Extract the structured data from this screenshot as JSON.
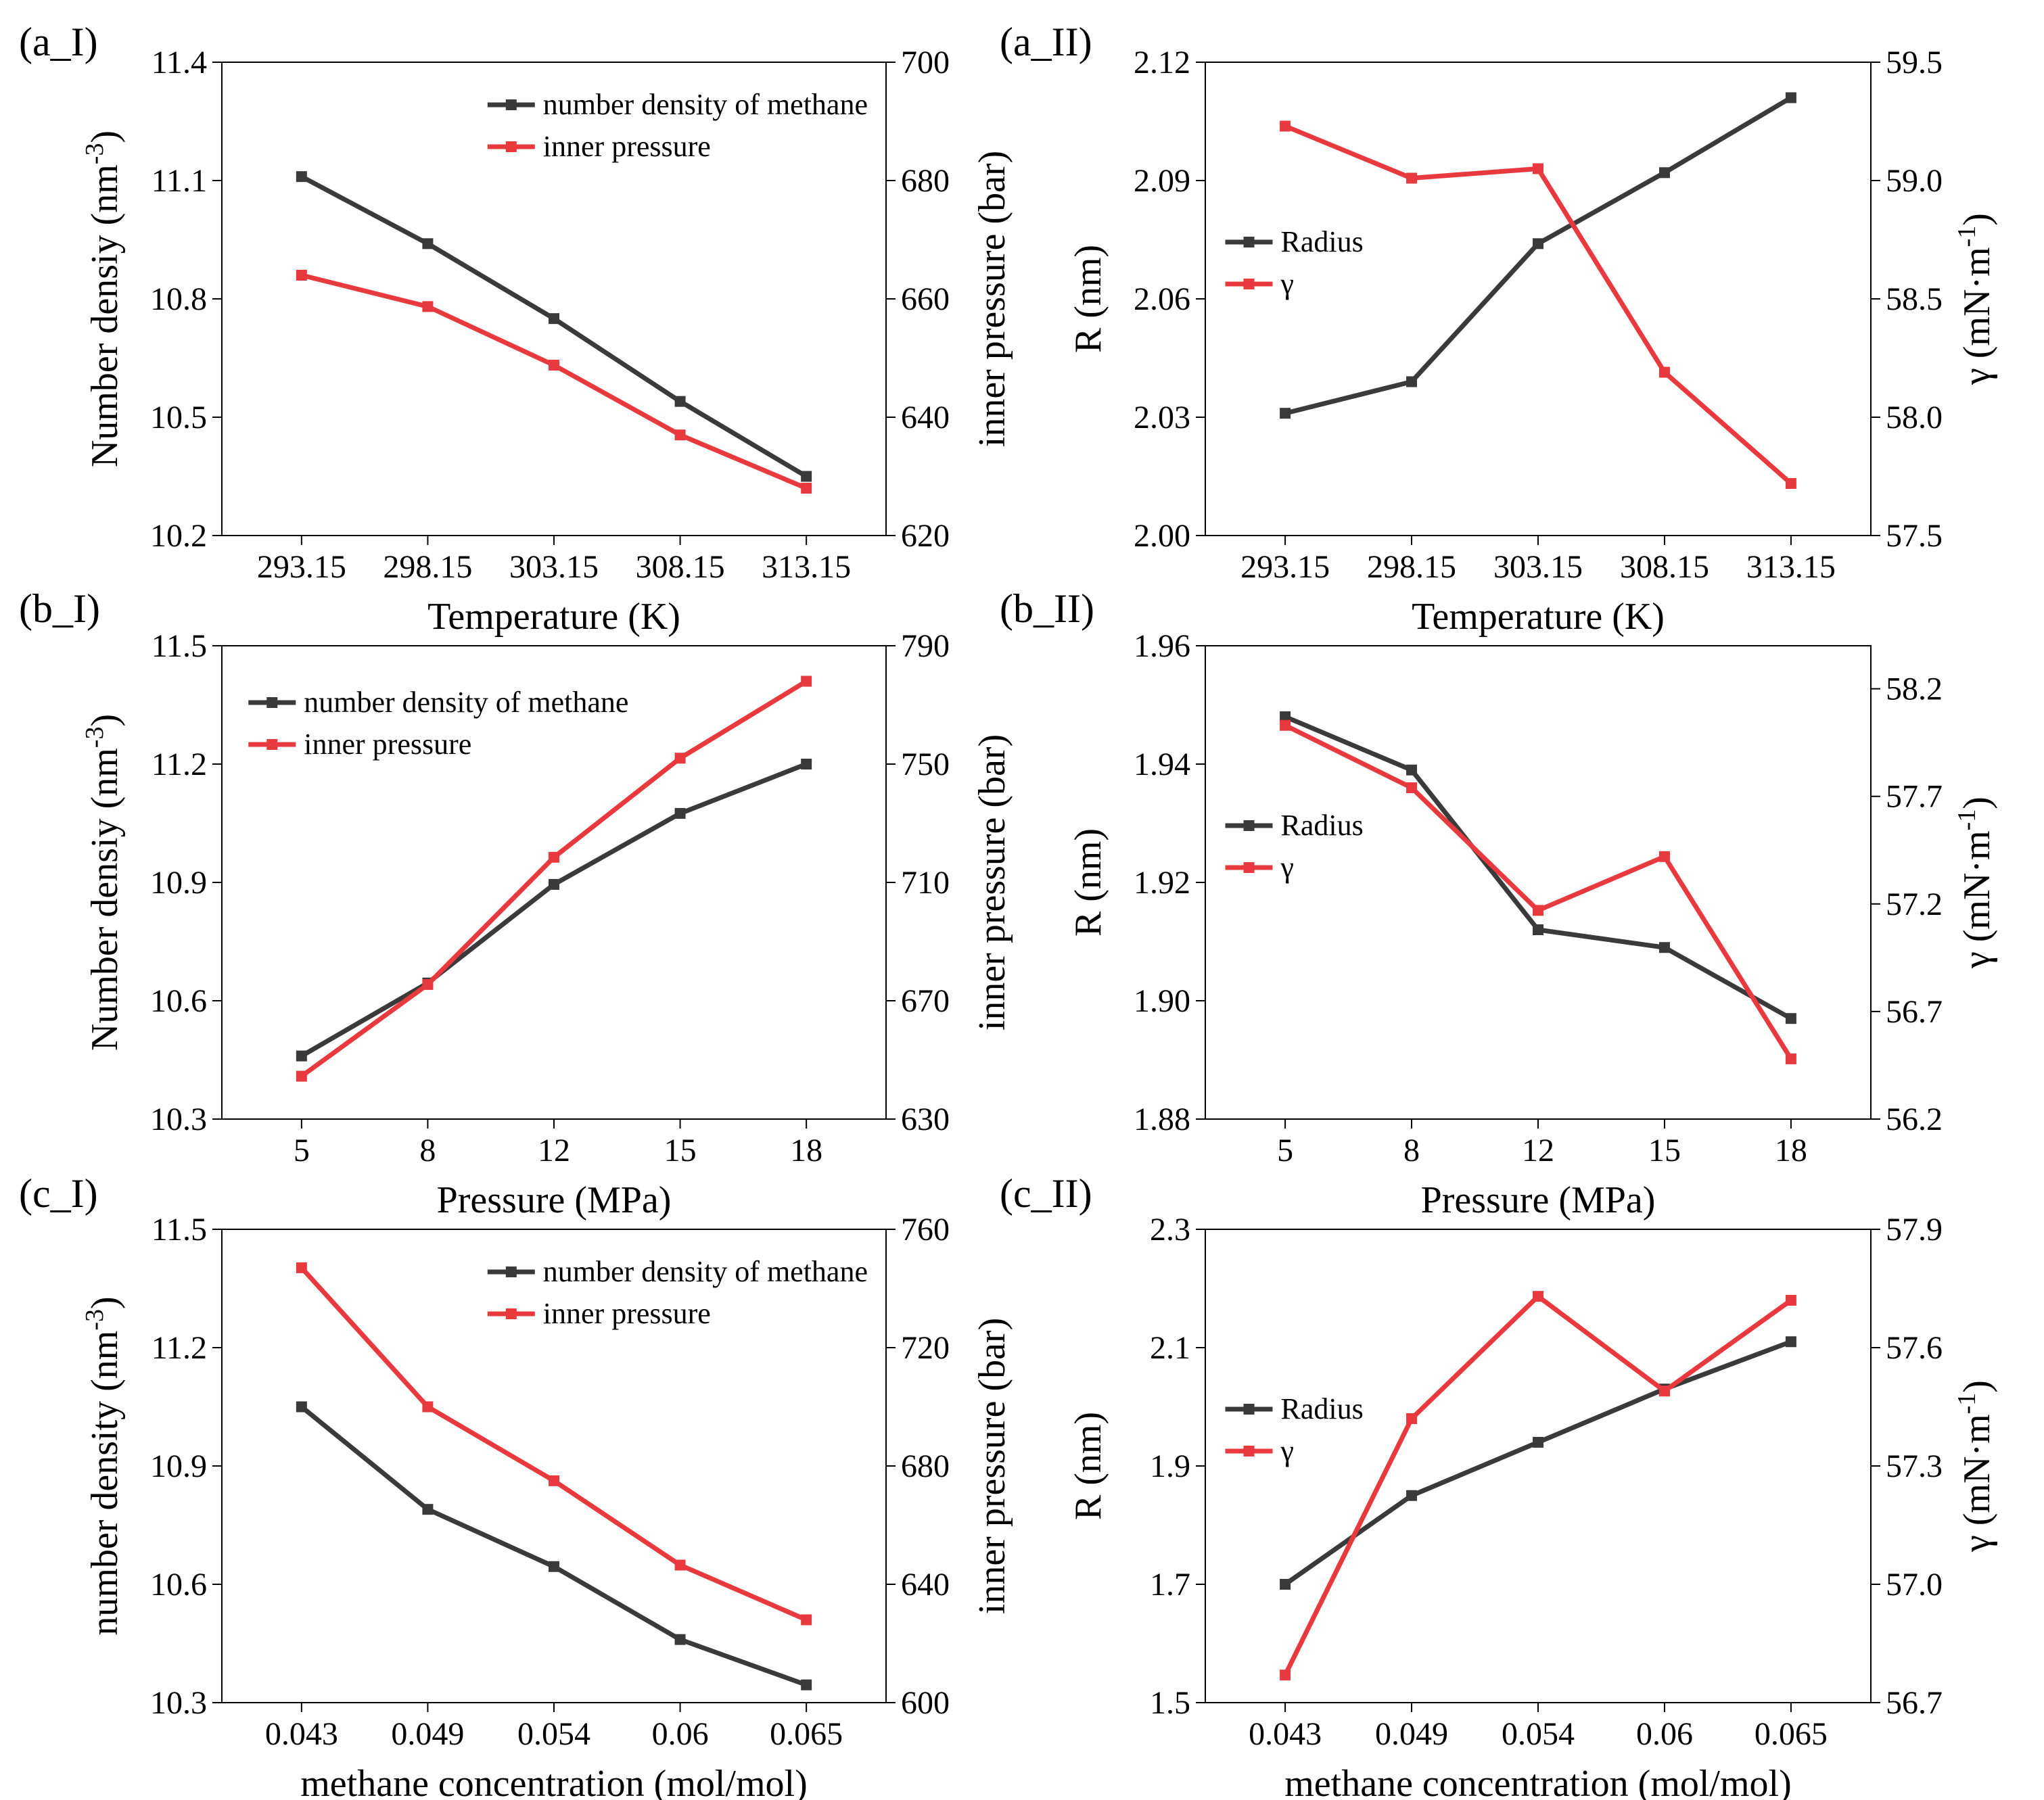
{
  "colors": {
    "series_dark": "#3a3a3a",
    "series_red": "#e8393e"
  },
  "chart_data": [
    {
      "type": "line",
      "panel_label": "(a_I)",
      "categories": [
        "293.15",
        "298.15",
        "303.15",
        "308.15",
        "313.15"
      ],
      "xlabel": "Temperature (K)",
      "left_axis": {
        "label": "Number densiy (nm",
        "sup": "-3",
        "close": ")",
        "ylim": [
          10.2,
          11.4
        ],
        "ticks": [
          "10.2",
          "10.5",
          "10.8",
          "11.1",
          "11.4"
        ]
      },
      "right_axis": {
        "label": "inner pressure (bar)",
        "ylim": [
          620,
          700
        ],
        "ticks": [
          "620",
          "640",
          "660",
          "680",
          "700"
        ]
      },
      "legend_position": "top-right",
      "series": [
        {
          "name": "number density of methane",
          "axis": "left",
          "color": "#3a3a3a",
          "values": [
            11.11,
            10.94,
            10.75,
            10.54,
            10.35
          ]
        },
        {
          "name": "inner pressure",
          "axis": "right",
          "color": "#e8393e",
          "values": [
            664.0,
            658.7,
            648.8,
            637.0,
            628.0
          ]
        }
      ]
    },
    {
      "type": "line",
      "panel_label": "(a_II)",
      "categories": [
        "293.15",
        "298.15",
        "303.15",
        "308.15",
        "313.15"
      ],
      "xlabel": "Temperature (K)",
      "left_axis": {
        "label": "R (nm)",
        "sup": "",
        "close": "",
        "ylim": [
          2.0,
          2.12
        ],
        "ticks": [
          "2.00",
          "2.03",
          "2.06",
          "2.09",
          "2.12"
        ]
      },
      "right_axis": {
        "label": "γ (mN·m",
        "sup": "-1",
        "close": ")",
        "ylim": [
          57.5,
          59.5
        ],
        "ticks": [
          "57.5",
          "58.0",
          "58.5",
          "59.0",
          "59.5"
        ]
      },
      "legend_position": "middle-left",
      "series": [
        {
          "name": "Radius",
          "axis": "left",
          "color": "#3a3a3a",
          "values": [
            2.031,
            2.039,
            2.074,
            2.092,
            2.111
          ]
        },
        {
          "name": "γ",
          "axis": "right",
          "color": "#e8393e",
          "values": [
            59.23,
            59.01,
            59.05,
            58.19,
            57.72
          ]
        }
      ]
    },
    {
      "type": "line",
      "panel_label": "(b_I)",
      "categories": [
        "5",
        "8",
        "12",
        "15",
        "18"
      ],
      "xlabel": "Pressure (MPa)",
      "left_axis": {
        "label": "Number densiy (nm",
        "sup": "-3",
        "close": ")",
        "ylim": [
          10.3,
          11.5
        ],
        "ticks": [
          "10.3",
          "10.6",
          "10.9",
          "11.2",
          "11.5"
        ]
      },
      "right_axis": {
        "label": "inner pressure (bar)",
        "ylim": [
          630,
          790
        ],
        "ticks": [
          "630",
          "670",
          "710",
          "750",
          "790"
        ]
      },
      "legend_position": "top-left",
      "series": [
        {
          "name": "number density of methane",
          "axis": "left",
          "color": "#3a3a3a",
          "values": [
            10.46,
            10.645,
            10.895,
            11.075,
            11.2
          ]
        },
        {
          "name": "inner pressure",
          "axis": "right",
          "color": "#e8393e",
          "values": [
            644.5,
            675.5,
            718.5,
            752.0,
            778.0
          ]
        }
      ]
    },
    {
      "type": "line",
      "panel_label": "(b_II)",
      "categories": [
        "5",
        "8",
        "12",
        "15",
        "18"
      ],
      "xlabel": "Pressure (MPa)",
      "left_axis": {
        "label": "R (nm)",
        "sup": "",
        "close": "",
        "ylim": [
          1.88,
          1.96
        ],
        "ticks": [
          "1.88",
          "1.90",
          "1.92",
          "1.94",
          "1.96"
        ]
      },
      "right_axis": {
        "label": "γ (mN·m",
        "sup": "-1",
        "close": ")",
        "ylim": [
          56.2,
          58.4
        ],
        "ticks": [
          "56.2",
          "56.7",
          "57.2",
          "57.7",
          "58.2"
        ]
      },
      "legend_position": "middle-left",
      "series": [
        {
          "name": "Radius",
          "axis": "left",
          "color": "#3a3a3a",
          "values": [
            1.948,
            1.939,
            1.912,
            1.909,
            1.897
          ]
        },
        {
          "name": "γ",
          "axis": "right",
          "color": "#e8393e",
          "values": [
            58.03,
            57.74,
            57.17,
            57.42,
            56.48
          ]
        }
      ]
    },
    {
      "type": "line",
      "panel_label": "(c_I)",
      "categories": [
        "0.043",
        "0.049",
        "0.054",
        "0.06",
        "0.065"
      ],
      "xlabel": "methane concentration (mol/mol)",
      "left_axis": {
        "label": "number density (nm",
        "sup": "-3",
        "close": ")",
        "ylim": [
          10.3,
          11.5
        ],
        "ticks": [
          "10.3",
          "10.6",
          "10.9",
          "11.2",
          "11.5"
        ]
      },
      "right_axis": {
        "label": "inner pressure (bar)",
        "ylim": [
          600,
          760
        ],
        "ticks": [
          "600",
          "640",
          "680",
          "720",
          "760"
        ]
      },
      "legend_position": "top-right",
      "series": [
        {
          "name": "number density of methane",
          "axis": "left",
          "color": "#3a3a3a",
          "values": [
            11.05,
            10.79,
            10.645,
            10.46,
            10.345
          ]
        },
        {
          "name": "inner pressure",
          "axis": "right",
          "color": "#e8393e",
          "values": [
            747.0,
            700.0,
            675.0,
            646.5,
            628.0
          ]
        }
      ]
    },
    {
      "type": "line",
      "panel_label": "(c_II)",
      "categories": [
        "0.043",
        "0.049",
        "0.054",
        "0.06",
        "0.065"
      ],
      "xlabel": "methane concentration (mol/mol)",
      "left_axis": {
        "label": "R (nm)",
        "sup": "",
        "close": "",
        "ylim": [
          1.5,
          2.3
        ],
        "ticks": [
          "1.5",
          "1.7",
          "1.9",
          "2.1",
          "2.3"
        ]
      },
      "right_axis": {
        "label": "γ (mN·m",
        "sup": "-1",
        "close": ")",
        "ylim": [
          56.7,
          57.9
        ],
        "ticks": [
          "56.7",
          "57.0",
          "57.3",
          "57.6",
          "57.9"
        ]
      },
      "legend_position": "middle-left",
      "series": [
        {
          "name": "Radius",
          "axis": "left",
          "color": "#3a3a3a",
          "values": [
            1.7,
            1.85,
            1.94,
            2.03,
            2.11
          ]
        },
        {
          "name": "γ",
          "axis": "right",
          "color": "#e8393e",
          "values": [
            56.77,
            57.42,
            57.73,
            57.49,
            57.72
          ]
        }
      ]
    }
  ]
}
